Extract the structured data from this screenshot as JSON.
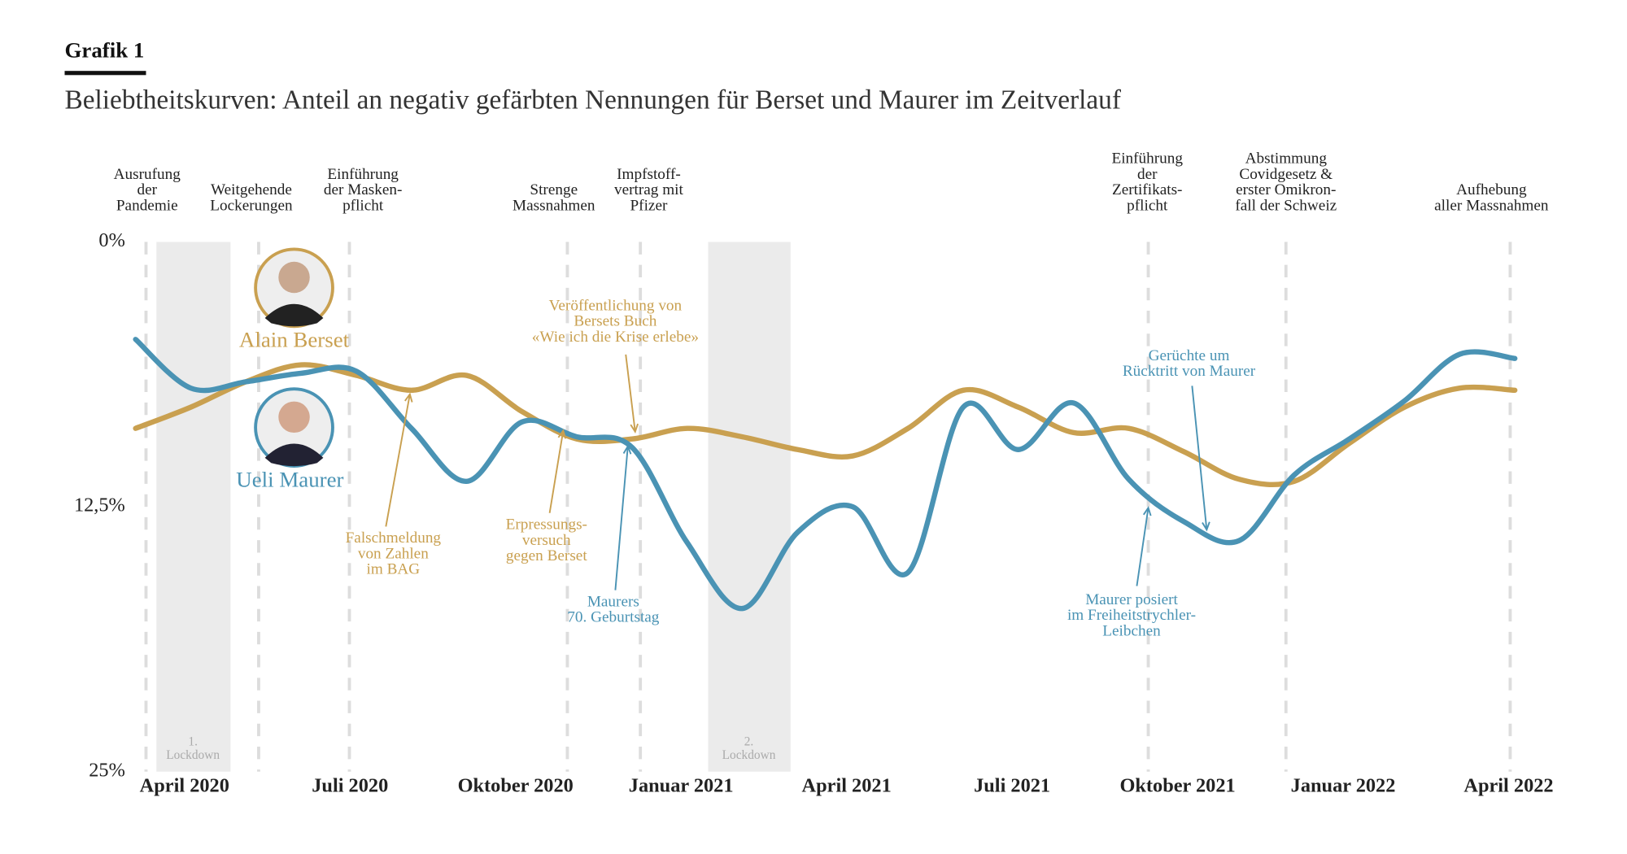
{
  "chart_data": {
    "type": "line",
    "label": "Grafik 1",
    "title": "Beliebtheitskurven: Anteil an negativ gefärbten Nennungen für Berset und Maurer im Zeitverlauf",
    "x": [
      "2020-03",
      "2020-04",
      "2020-05",
      "2020-06",
      "2020-07",
      "2020-08",
      "2020-09",
      "2020-10",
      "2020-11",
      "2020-12",
      "2021-01",
      "2021-02",
      "2021-03",
      "2021-04",
      "2021-05",
      "2021-06",
      "2021-07",
      "2021-08",
      "2021-09",
      "2021-10",
      "2021-11",
      "2021-12",
      "2022-01",
      "2022-02",
      "2022-03",
      "2022-04"
    ],
    "series": [
      {
        "name": "Alain Berset",
        "color": "#c9a050",
        "values": [
          8.8,
          7.8,
          6.6,
          5.8,
          6.3,
          7.0,
          6.3,
          8.0,
          9.3,
          9.3,
          8.8,
          9.2,
          9.8,
          10.1,
          8.8,
          7.0,
          7.8,
          9.0,
          8.8,
          9.9,
          11.2,
          11.3,
          9.5,
          7.8,
          6.9,
          7.0
        ]
      },
      {
        "name": "Ueli Maurer",
        "color": "#4a93b4",
        "values": [
          4.6,
          6.9,
          6.6,
          6.2,
          6.1,
          8.8,
          11.3,
          8.5,
          9.2,
          9.7,
          14.2,
          17.3,
          13.7,
          12.5,
          15.6,
          7.8,
          9.8,
          7.6,
          11.2,
          13.2,
          14.1,
          11.0,
          9.3,
          7.5,
          5.3,
          5.5
        ]
      }
    ],
    "ylim": [
      0,
      25
    ],
    "yticks": [
      {
        "value": 0,
        "label": "0%"
      },
      {
        "value": 12.5,
        "label": "12,5%"
      },
      {
        "value": 25,
        "label": "25%"
      }
    ],
    "xticks": [
      {
        "value": "2020-04",
        "label": "April 2020"
      },
      {
        "value": "2020-07",
        "label": "Juli 2020"
      },
      {
        "value": "2020-10",
        "label": "Oktober 2020"
      },
      {
        "value": "2021-01",
        "label": "Januar 2021"
      },
      {
        "value": "2021-04",
        "label": "April 2021"
      },
      {
        "value": "2021-07",
        "label": "Juli 2021"
      },
      {
        "value": "2021-10",
        "label": "Oktober 2021"
      },
      {
        "value": "2022-01",
        "label": "Januar 2022"
      },
      {
        "value": "2022-04",
        "label": "April 2022"
      }
    ],
    "events": [
      [
        "Ausrufung",
        "der",
        "Pandemie"
      ],
      [
        "Weitgehende",
        "Lockerungen"
      ],
      [
        "Einführung",
        "der Masken-",
        "pflicht"
      ],
      [
        "Strenge",
        "Massnahmen"
      ],
      [
        "Impfstoff-",
        "vertrag mit",
        "Pfizer"
      ],
      [
        "Einführung",
        "der",
        "Zertifikats-",
        "pflicht"
      ],
      [
        "Abstimmung",
        "Covidgesetz &",
        "erster Omikron-",
        "fall der Schweiz"
      ],
      [
        "Aufhebung",
        "aller Massnahmen"
      ]
    ],
    "lockdowns": [
      [
        "1.",
        "Lockdown"
      ],
      [
        "2.",
        "Lockdown"
      ]
    ],
    "annotations": [
      {
        "text": [
          "Falschmeldung",
          "von Zahlen",
          "im BAG"
        ],
        "color": "#c9a050"
      },
      {
        "text": [
          "Erpressungs-",
          "versuch",
          "gegen Berset"
        ],
        "color": "#c9a050"
      },
      {
        "text": [
          "Veröffentlichung von",
          "Bersets Buch",
          "«Wie ich die Krise erlebe»"
        ],
        "color": "#c9a050"
      },
      {
        "text": [
          "Maurers",
          "70. Geburtstag"
        ],
        "color": "#4a93b4"
      },
      {
        "text": [
          "Gerüchte um",
          "Rücktritt von Maurer"
        ],
        "color": "#4a93b4"
      },
      {
        "text": [
          "Maurer posiert",
          "im Freiheitstrychler-",
          "Leibchen"
        ],
        "color": "#4a93b4"
      }
    ]
  }
}
